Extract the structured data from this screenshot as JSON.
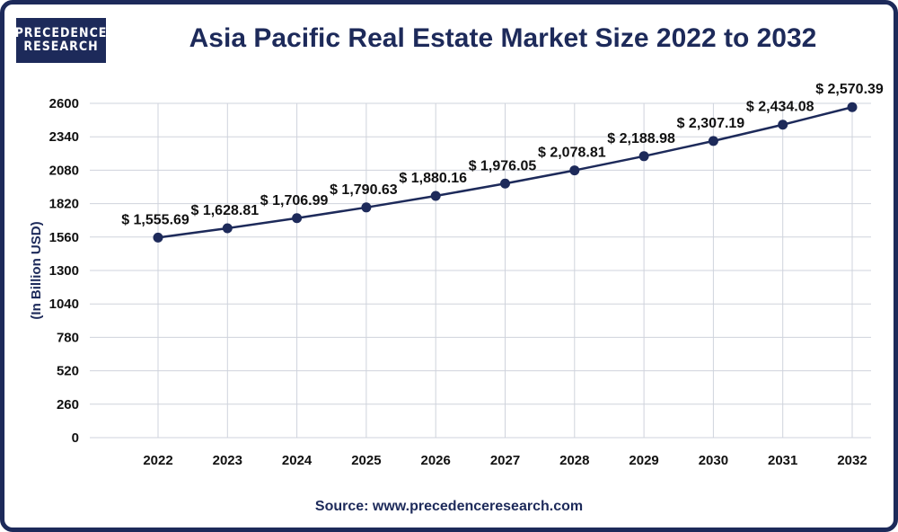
{
  "logo": {
    "line1": "PRECEDENCE",
    "line2": "RESEARCH"
  },
  "title": "Asia Pacific Real Estate Market Size 2022 to 2032",
  "source": "Source: www.precedenceresearch.com",
  "colors": {
    "accent": "#1d2a5a",
    "grid": "#cfd3dc",
    "line": "#1d2a5a"
  },
  "chart_data": {
    "type": "line",
    "title": "Asia Pacific Real Estate Market Size 2022 to 2032",
    "xlabel": "",
    "ylabel": "(In Billion USD)",
    "ylim": [
      0,
      2600
    ],
    "yticks": [
      0,
      260,
      520,
      780,
      1040,
      1300,
      1560,
      1820,
      2080,
      2340,
      2600
    ],
    "categories": [
      "2022",
      "2023",
      "2024",
      "2025",
      "2026",
      "2027",
      "2028",
      "2029",
      "2030",
      "2031",
      "2032"
    ],
    "values": [
      1555.69,
      1628.81,
      1706.99,
      1790.63,
      1880.16,
      1976.05,
      2078.81,
      2188.98,
      2307.19,
      2434.08,
      2570.39
    ],
    "labels": [
      "$ 1,555.69",
      "$ 1,628.81",
      "$ 1,706.99",
      "$ 1,790.63",
      "$ 1,880.16",
      "$ 1,976.05",
      "$ 2,078.81",
      "$ 2,188.98",
      "$ 2,307.19",
      "$ 2,434.08",
      "$ 2,570.39"
    ],
    "grid": true,
    "legend": "none"
  }
}
